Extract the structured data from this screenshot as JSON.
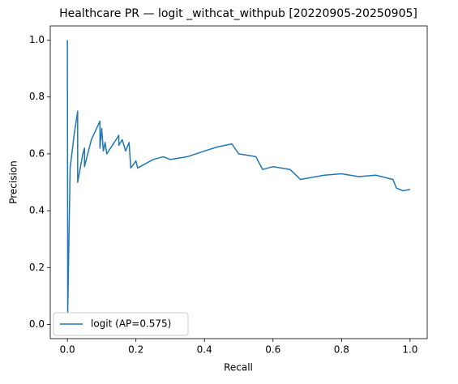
{
  "chart_data": {
    "type": "line",
    "title": "Healthcare PR — logit _withcat_withpub [20220905-20250905]",
    "xlabel": "Recall",
    "ylabel": "Precision",
    "x": [
      0,
      0.001,
      0.008,
      0.02,
      0.03,
      0.03,
      0.045,
      0.05,
      0.05,
      0.07,
      0.095,
      0.095,
      0.1,
      0.105,
      0.11,
      0.115,
      0.15,
      0.15,
      0.16,
      0.17,
      0.18,
      0.185,
      0.2,
      0.205,
      0.25,
      0.28,
      0.3,
      0.35,
      0.4,
      0.44,
      0.48,
      0.5,
      0.55,
      0.57,
      0.6,
      0.65,
      0.68,
      0.75,
      0.8,
      0.85,
      0.9,
      0.95,
      0.96,
      0.98,
      1.0
    ],
    "series": [
      {
        "name": "logit (AP=0.575)",
        "color": "#1f77b4",
        "values": [
          1.0,
          0.04,
          0.55,
          0.67,
          0.75,
          0.5,
          0.6,
          0.62,
          0.555,
          0.65,
          0.715,
          0.62,
          0.69,
          0.61,
          0.64,
          0.6,
          0.665,
          0.63,
          0.65,
          0.61,
          0.64,
          0.55,
          0.575,
          0.55,
          0.58,
          0.59,
          0.58,
          0.59,
          0.61,
          0.625,
          0.635,
          0.6,
          0.59,
          0.545,
          0.555,
          0.545,
          0.51,
          0.525,
          0.53,
          0.52,
          0.525,
          0.51,
          0.48,
          0.47,
          0.475
        ]
      }
    ],
    "xlim": [
      -0.05,
      1.05
    ],
    "ylim": [
      -0.05,
      1.05
    ],
    "xticks": [
      {
        "value": 0,
        "label": "0.0"
      },
      0.2,
      0.4,
      0.6,
      0.8,
      {
        "value": 1,
        "label": "1.0"
      }
    ],
    "yticks": [
      {
        "value": 0,
        "label": "0.0"
      },
      0.2,
      0.4,
      0.6,
      0.8,
      {
        "value": 1,
        "label": "1.0"
      }
    ],
    "grid": false,
    "legend": "lower left"
  }
}
